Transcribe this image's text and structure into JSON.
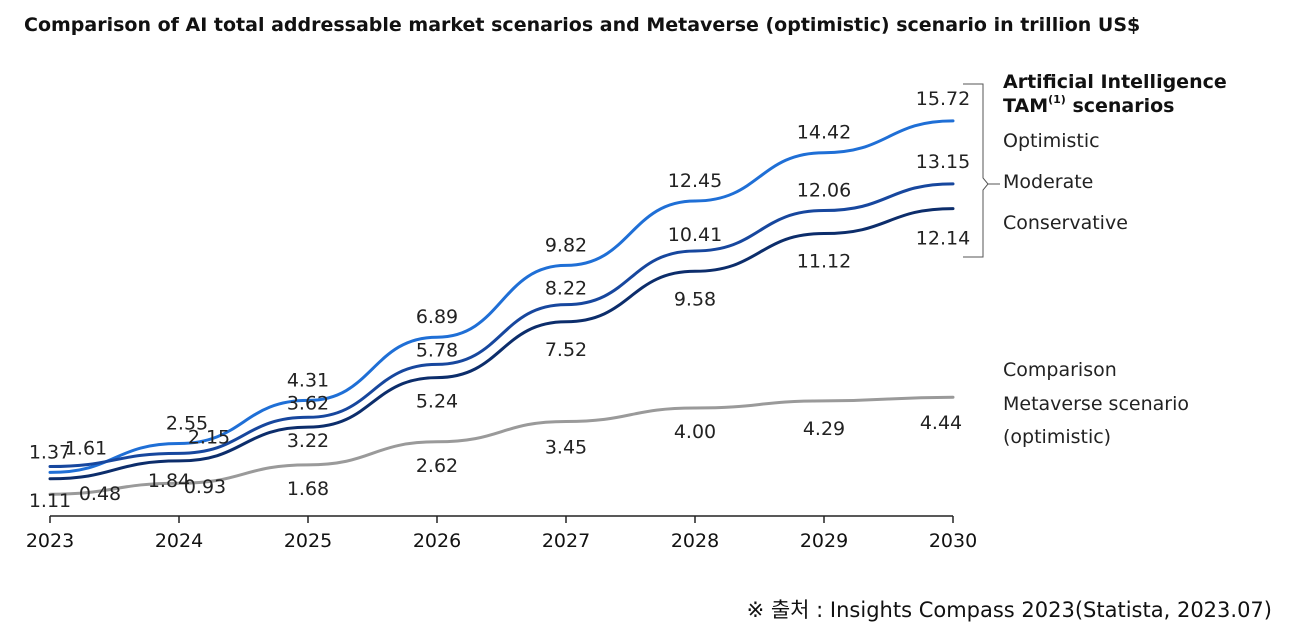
{
  "chart_data": {
    "type": "line",
    "title": "Comparison of AI total addressable market scenarios and Metaverse (optimistic) scenario in trillion US$",
    "categories": [
      "2023",
      "2024",
      "2025",
      "2026",
      "2027",
      "2028",
      "2029",
      "2030"
    ],
    "ylim": [
      0,
      17
    ],
    "series": [
      {
        "name": "Optimistic",
        "color": "#1f6fd6",
        "values": [
          1.37,
          2.55,
          4.31,
          6.89,
          9.82,
          12.45,
          14.42,
          15.72
        ],
        "labels": [
          "1.37",
          "2.55",
          "4.31",
          "6.89",
          "9.82",
          "12.45",
          "14.42",
          "15.72"
        ]
      },
      {
        "name": "Moderate",
        "color": "#17479e",
        "values": [
          1.61,
          2.15,
          3.62,
          5.78,
          8.22,
          10.41,
          12.06,
          13.15
        ],
        "labels": [
          "1.61",
          "2.15",
          "3.62",
          "5.78",
          "8.22",
          "10.41",
          "12.06",
          "13.15"
        ]
      },
      {
        "name": "Conservative",
        "color": "#0c2d6b",
        "values": [
          1.11,
          1.84,
          3.22,
          5.24,
          7.52,
          9.58,
          11.12,
          12.14
        ],
        "labels": [
          "1.11",
          "1.84",
          "3.22",
          "5.24",
          "7.52",
          "9.58",
          "11.12",
          "12.14"
        ]
      },
      {
        "name": "Metaverse scenario (optimistic)",
        "color": "#9a9a9a",
        "values": [
          0.48,
          0.93,
          1.68,
          2.62,
          3.45,
          4.0,
          4.29,
          4.44
        ],
        "labels": [
          "0.48",
          "0.93",
          "1.68",
          "2.62",
          "3.45",
          "4.00",
          "4.29",
          "4.44"
        ]
      }
    ],
    "legend": {
      "ai_title_line1": "Artificial Intelligence",
      "ai_title_tam": "TAM",
      "ai_title_sup": "(1)",
      "ai_title_rest": " scenarios",
      "optimistic": "Optimistic",
      "moderate": "Moderate",
      "conservative": "Conservative",
      "comparison_line1": "Comparison",
      "comparison_line2": "Metaverse scenario",
      "comparison_line3": "(optimistic)"
    }
  },
  "source": "※ 출처 : Insights Compass 2023(Statista, 2023.07)"
}
